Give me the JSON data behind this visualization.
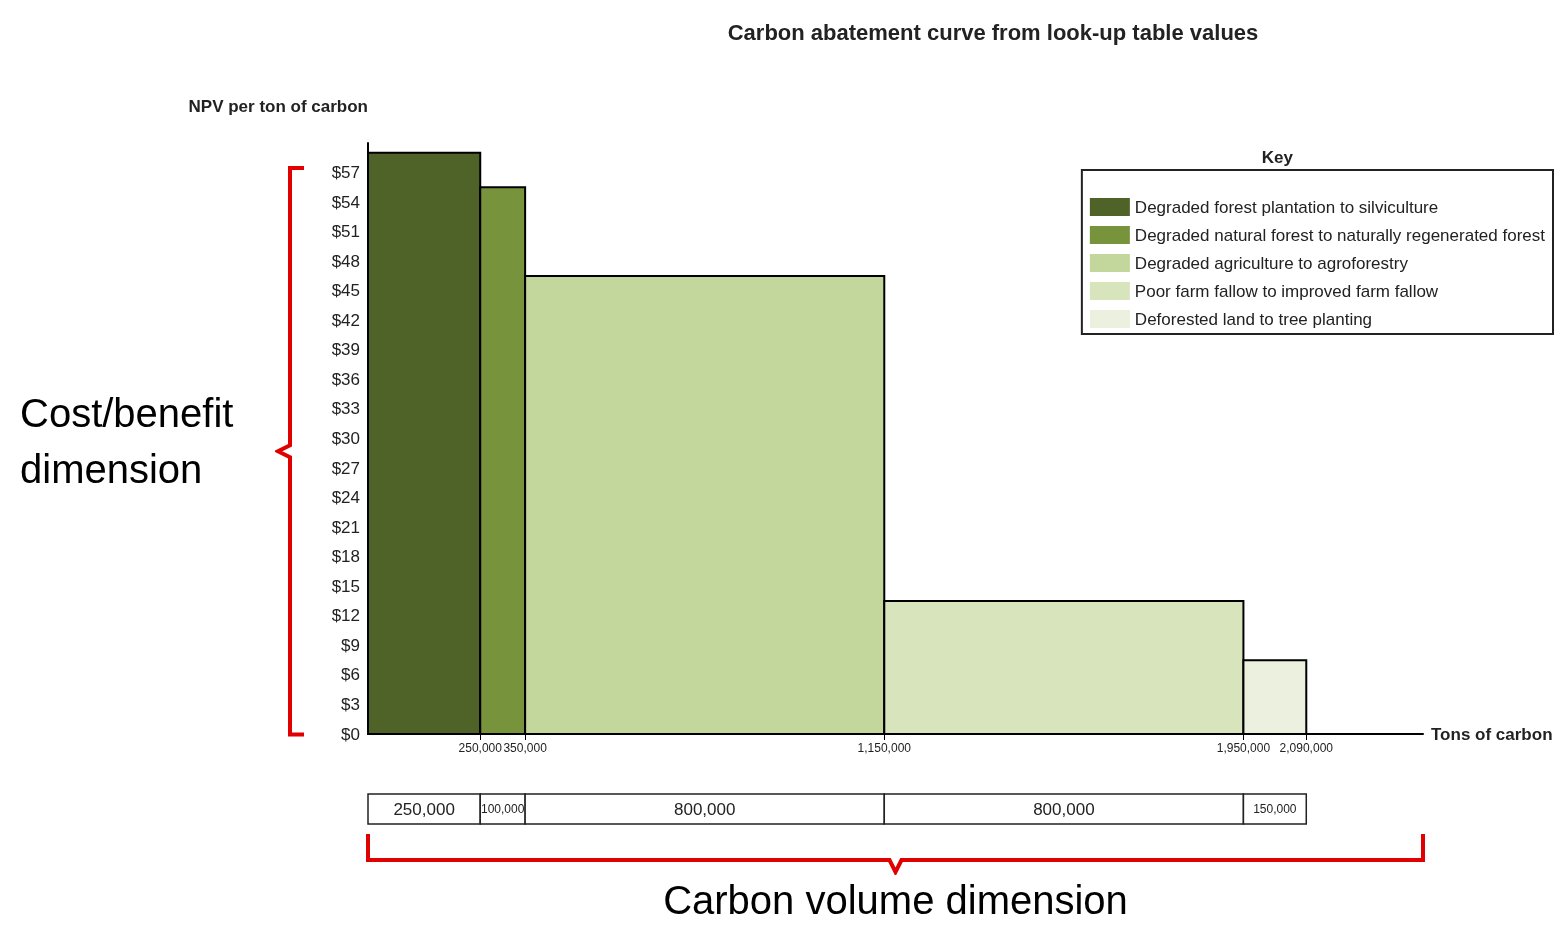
{
  "chart_data": {
    "type": "histogram",
    "title": "Carbon abatement curve from look-up table values",
    "ylabel": "NPV per ton of carbon",
    "xlabel": "Tons of carbon",
    "legend_title": "Key",
    "legend": "top right",
    "grid": false,
    "bins": [
      0,
      250000,
      350000,
      1150000,
      1950000,
      2090000
    ],
    "series": [
      {
        "name": "Degraded forest plantation to silviculture",
        "color": "#4f6228",
        "values": [
          59,
          null,
          null,
          null,
          null
        ]
      },
      {
        "name": "Degraded natural forest to naturally regenerated forest",
        "color": "#77933c",
        "values": [
          null,
          55.5,
          null,
          null,
          null
        ]
      },
      {
        "name": "Degraded agriculture to agroforestry",
        "color": "#c3d69b",
        "values": [
          null,
          null,
          46.5,
          null,
          null
        ]
      },
      {
        "name": "Poor farm fallow to improved farm fallow",
        "color": "#d7e4bc",
        "values": [
          null,
          null,
          null,
          13.5,
          null
        ]
      },
      {
        "name": "Deforested land to tree planting",
        "color": "#ebf1de",
        "values": [
          null,
          null,
          null,
          null,
          7.5
        ]
      }
    ],
    "xlim": [
      0,
      2350000
    ],
    "xticks": [
      {
        "value": 250000,
        "label": "250,000"
      },
      {
        "value": 350000,
        "label": "350,000"
      },
      {
        "value": 1150000,
        "label": "1,150,000"
      },
      {
        "value": 1950000,
        "label": "1,950,000"
      },
      {
        "value": 2090000,
        "label": "2,090,000"
      }
    ],
    "ylim": [
      0,
      60
    ],
    "yticks": [
      {
        "value": 0,
        "label": "$0"
      },
      {
        "value": 3,
        "label": "$3"
      },
      {
        "value": 6,
        "label": "$6"
      },
      {
        "value": 9,
        "label": "$9"
      },
      {
        "value": 12,
        "label": "$12"
      },
      {
        "value": 15,
        "label": "$15"
      },
      {
        "value": 18,
        "label": "$18"
      },
      {
        "value": 21,
        "label": "$21"
      },
      {
        "value": 24,
        "label": "$24"
      },
      {
        "value": 27,
        "label": "$27"
      },
      {
        "value": 30,
        "label": "$30"
      },
      {
        "value": 33,
        "label": "$33"
      },
      {
        "value": 36,
        "label": "$36"
      },
      {
        "value": 39,
        "label": "$39"
      },
      {
        "value": 42,
        "label": "$42"
      },
      {
        "value": 45,
        "label": "$45"
      },
      {
        "value": 48,
        "label": "$48"
      },
      {
        "value": 51,
        "label": "$51"
      },
      {
        "value": 54,
        "label": "$54"
      },
      {
        "value": 57,
        "label": "$57"
      }
    ],
    "annotations": [
      "250,000",
      "100,000",
      "800,000",
      "800,000",
      "150,000",
      "Cost/benefit dimension",
      "Carbon volume dimension"
    ]
  }
}
